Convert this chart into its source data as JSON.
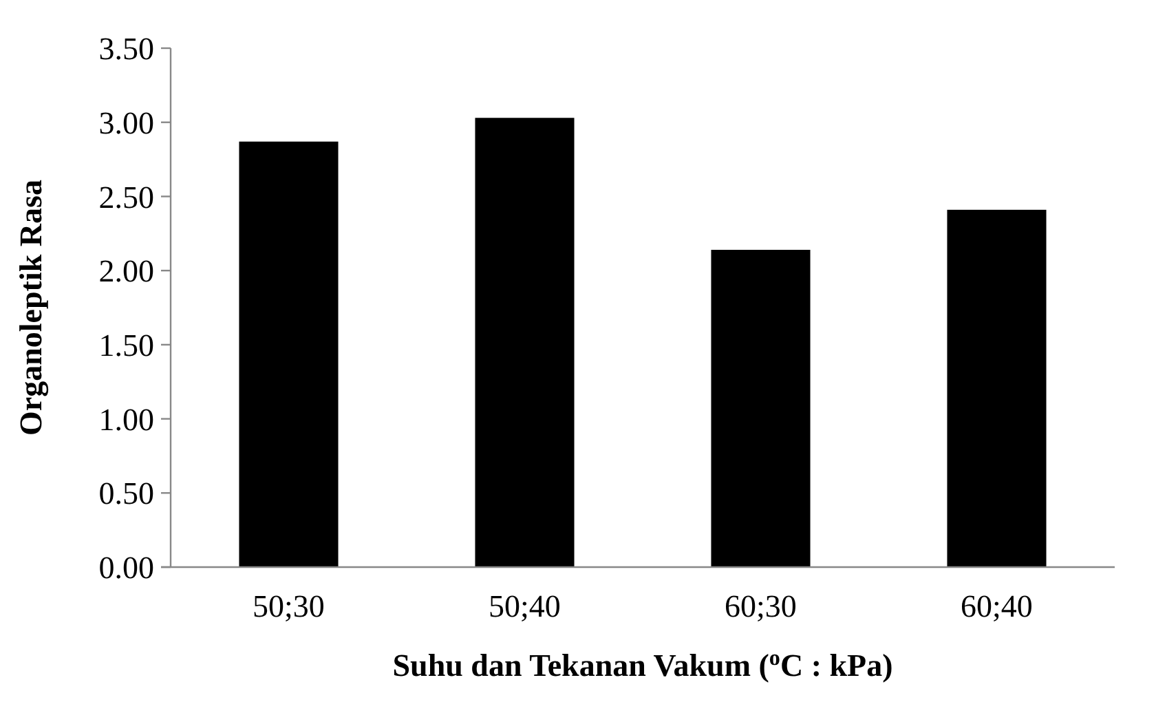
{
  "chart_data": {
    "type": "bar",
    "xlabel": "Suhu dan Tekanan Vakum ($^{o}$C : kPa)",
    "ylabel": "Organoleptik Rasa",
    "categories": [
      "50;30",
      "50;40",
      "60;30",
      "60;40"
    ],
    "values": [
      2.87,
      3.03,
      2.14,
      2.41
    ],
    "color": "#000000",
    "ylim": [
      0,
      3.5
    ],
    "yticks": [
      {
        "value": 0,
        "label": "0.00"
      },
      {
        "value": 0.5,
        "label": "0.50"
      },
      {
        "value": 1,
        "label": "1.00"
      },
      {
        "value": 1.5,
        "label": "1.50"
      },
      {
        "value": 2,
        "label": "2.00"
      },
      {
        "value": 2.5,
        "label": "2.50"
      },
      {
        "value": 3,
        "label": "3.00"
      },
      {
        "value": 3.5,
        "label": "3.50"
      }
    ],
    "grid": false
  }
}
